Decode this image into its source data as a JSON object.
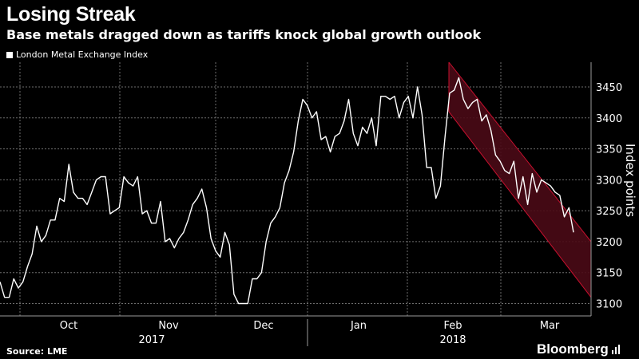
{
  "header": {
    "title": "Losing Streak",
    "subtitle": "Base metals dragged down as tariffs knock global growth outlook"
  },
  "footer": {
    "source": "Source: LME",
    "brand": "Bloomberg"
  },
  "colors": {
    "background": "#000000",
    "line": "#ffffff",
    "grid": "#6e6e6e",
    "channel_fill": "#4a0a16",
    "channel_edge": "#c8102e"
  },
  "chart_data": {
    "type": "line",
    "legend": "London Metal Exchange Index",
    "ylabel": "Index points",
    "ylim": [
      3080,
      3490
    ],
    "yticks": [
      3100,
      3150,
      3200,
      3250,
      3300,
      3350,
      3400,
      3450
    ],
    "month_labels": [
      "Oct",
      "Nov",
      "Dec",
      "Jan",
      "Feb",
      "Mar"
    ],
    "year_labels": [
      "2017",
      "2018"
    ],
    "series": [
      {
        "name": "London Metal Exchange Index",
        "values": [
          3135,
          3110,
          3110,
          3140,
          3125,
          3135,
          3160,
          3180,
          3225,
          3200,
          3210,
          3235,
          3235,
          3270,
          3265,
          3325,
          3280,
          3270,
          3270,
          3260,
          3280,
          3300,
          3305,
          3305,
          3245,
          3250,
          3255,
          3305,
          3295,
          3290,
          3305,
          3245,
          3250,
          3230,
          3230,
          3265,
          3200,
          3205,
          3190,
          3205,
          3215,
          3235,
          3260,
          3270,
          3285,
          3255,
          3205,
          3185,
          3175,
          3215,
          3195,
          3115,
          3100,
          3100,
          3100,
          3140,
          3140,
          3150,
          3200,
          3230,
          3240,
          3255,
          3295,
          3315,
          3345,
          3395,
          3430,
          3420,
          3400,
          3410,
          3365,
          3370,
          3345,
          3370,
          3375,
          3395,
          3430,
          3375,
          3355,
          3385,
          3375,
          3400,
          3355,
          3435,
          3435,
          3430,
          3435,
          3400,
          3425,
          3435,
          3400,
          3450,
          3405,
          3320,
          3320,
          3270,
          3290,
          3370,
          3440,
          3445,
          3465,
          3430,
          3415,
          3425,
          3430,
          3395,
          3405,
          3380,
          3340,
          3330,
          3315,
          3310,
          3330,
          3270,
          3305,
          3260,
          3310,
          3280,
          3300,
          3295,
          3290,
          3280,
          3275,
          3240,
          3255,
          3215
        ]
      }
    ],
    "channel": {
      "start_upper": 3490,
      "start_lower": 3410,
      "end_upper": 3200,
      "end_lower": 3110
    },
    "note": "Shaded downward trend channel from early Feb to late Mar"
  }
}
